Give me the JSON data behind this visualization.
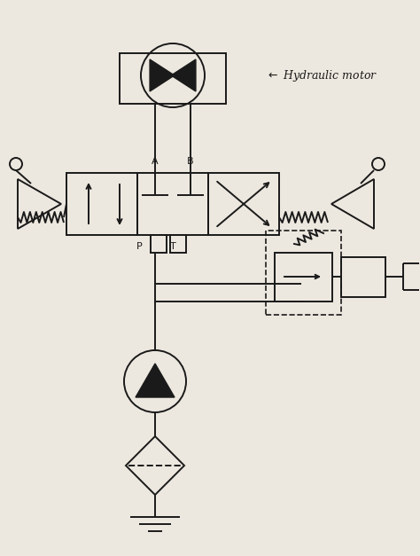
{
  "bg_color": "#ede8df",
  "line_color": "#1a1a1a",
  "hydraulic_motor_label": "Hydraulic motor",
  "label_A": "A",
  "label_B": "B",
  "label_P": "P",
  "label_T": "T"
}
